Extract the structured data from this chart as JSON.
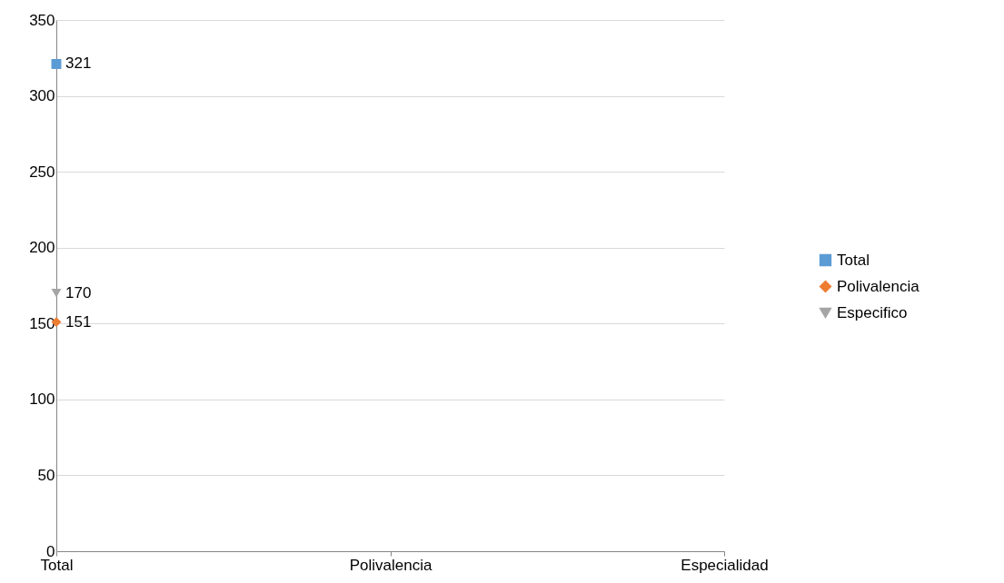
{
  "chart_data": {
    "type": "line",
    "categories": [
      "Total",
      "Polivalencia",
      "Especialidad"
    ],
    "series": [
      {
        "name": "Total",
        "color": "#5b9bd5",
        "marker": "square",
        "values": [
          321,
          null,
          null
        ]
      },
      {
        "name": "Polivalencia",
        "color": "#ed7d31",
        "marker": "diamond",
        "values": [
          151,
          null,
          null
        ]
      },
      {
        "name": "Especifico",
        "color": "#a5a5a5",
        "marker": "triangle",
        "values": [
          170,
          null,
          null
        ]
      }
    ],
    "ylim": [
      0,
      350
    ],
    "yticks": [
      0,
      50,
      100,
      150,
      200,
      250,
      300,
      350
    ],
    "grid": "y",
    "legend": "right",
    "data_labels": true
  }
}
